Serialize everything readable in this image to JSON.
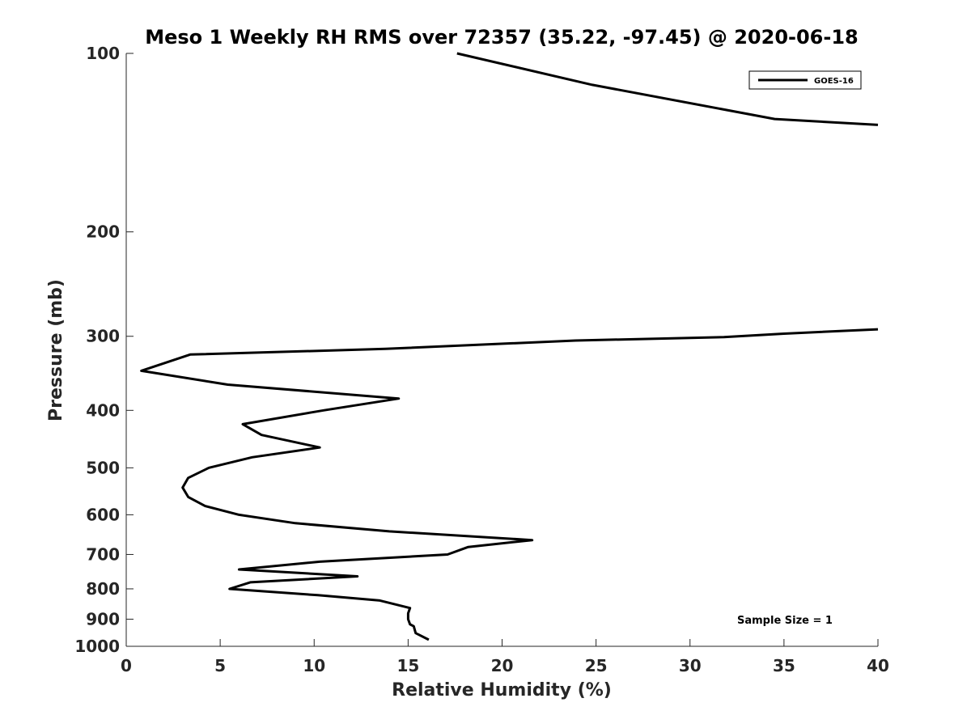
{
  "chart_data": {
    "type": "line",
    "title": "Meso 1 Weekly RH RMS over 72357 (35.22, -97.45) @ 2020-06-18",
    "xlabel": "Relative Humidity (%)",
    "ylabel": "Pressure (mb)",
    "xlim": [
      0,
      40
    ],
    "ylim": [
      1000,
      100
    ],
    "y_scale": "log",
    "grid": false,
    "legend_position": "top-right",
    "x_ticks": [
      0,
      5,
      10,
      15,
      20,
      25,
      30,
      35,
      40
    ],
    "y_ticks": [
      100,
      200,
      300,
      400,
      500,
      600,
      700,
      800,
      900,
      1000
    ],
    "series": [
      {
        "name": "GOES-16",
        "color": "#000000",
        "points": [
          [
            16.1,
            975
          ],
          [
            15.4,
            950
          ],
          [
            15.3,
            925
          ],
          [
            15.1,
            918
          ],
          [
            15.0,
            900
          ],
          [
            15.0,
            880
          ],
          [
            15.1,
            862
          ],
          [
            13.5,
            837
          ],
          [
            10.2,
            820
          ],
          [
            5.5,
            800
          ],
          [
            6.6,
            780
          ],
          [
            12.3,
            762
          ],
          [
            6.0,
            742
          ],
          [
            10.3,
            720
          ],
          [
            17.1,
            700
          ],
          [
            18.2,
            680
          ],
          [
            21.6,
            662
          ],
          [
            14.0,
            640
          ],
          [
            9.0,
            620
          ],
          [
            6.0,
            600
          ],
          [
            4.2,
            580
          ],
          [
            3.3,
            560
          ],
          [
            3.0,
            540
          ],
          [
            3.3,
            520
          ],
          [
            4.4,
            500
          ],
          [
            6.7,
            480
          ],
          [
            10.3,
            462
          ],
          [
            7.2,
            440
          ],
          [
            6.2,
            422
          ],
          [
            10.5,
            400
          ],
          [
            14.5,
            382
          ],
          [
            5.4,
            362
          ],
          [
            0.8,
            343
          ],
          [
            3.4,
            322
          ],
          [
            13.8,
            315
          ],
          [
            23.9,
            305
          ],
          [
            31.8,
            301
          ],
          [
            35.0,
            297
          ],
          [
            40.0,
            292
          ]
        ]
      },
      {
        "name": "",
        "color": "#000000",
        "points": [
          [
            17.6,
            100
          ],
          [
            24.8,
            113
          ],
          [
            34.5,
            129
          ],
          [
            40.0,
            132
          ]
        ]
      }
    ],
    "legend_entries": [
      "GOES-16"
    ],
    "annotation": "Sample Size = 1"
  }
}
